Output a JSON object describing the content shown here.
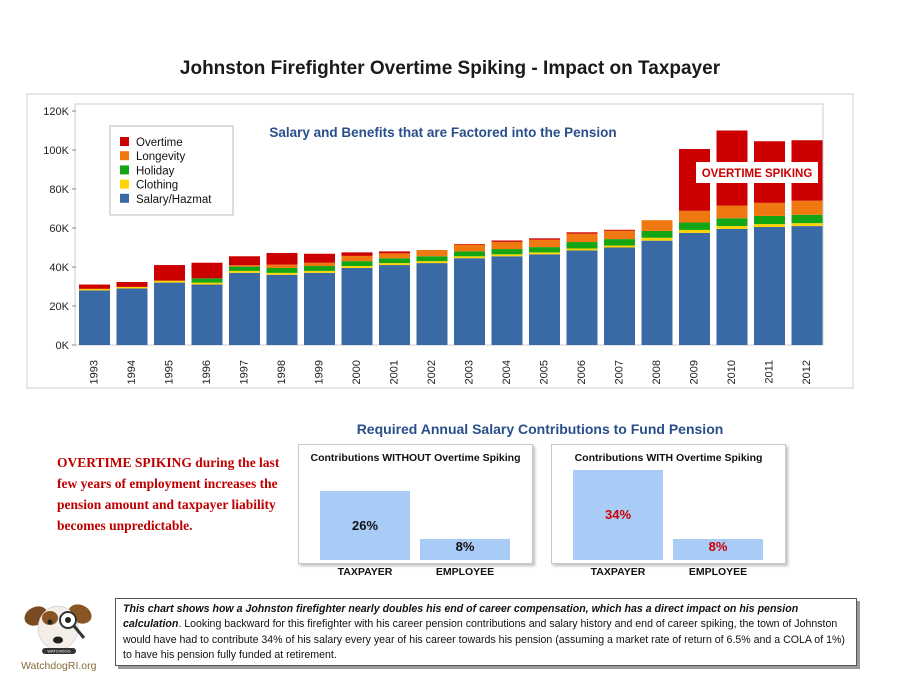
{
  "page_title": "Johnston Firefighter Overtime Spiking - Impact on Taxpayer",
  "chart_data": [
    {
      "type": "bar",
      "stacked": true,
      "title": "Salary and Benefits that are Factored into the Pension",
      "annotation": "OVERTIME SPIKING",
      "categories": [
        "1993",
        "1994",
        "1995",
        "1996",
        "1997",
        "1998",
        "1999",
        "2000",
        "2001",
        "2002",
        "2003",
        "2004",
        "2005",
        "2006",
        "2007",
        "2008",
        "2009",
        "2010",
        "2011",
        "2012"
      ],
      "ylim": [
        0,
        120000
      ],
      "yticks": [
        0,
        20000,
        40000,
        60000,
        80000,
        100000,
        120000
      ],
      "ytick_labels": [
        "0K",
        "20K",
        "40K",
        "60K",
        "80K",
        "100K",
        "120K"
      ],
      "grid": false,
      "legend_position": "top-left",
      "series": [
        {
          "name": "Salary/Hazmat",
          "color": "#3a6aa5",
          "values": [
            28000,
            29000,
            32000,
            31000,
            37000,
            36000,
            37000,
            39500,
            41000,
            42000,
            44500,
            45500,
            46500,
            48500,
            50000,
            53500,
            57500,
            59500,
            60500,
            61000
          ]
        },
        {
          "name": "Clothing",
          "color": "#ffd400",
          "values": [
            800,
            800,
            1000,
            1000,
            1000,
            1000,
            1000,
            1000,
            1000,
            1000,
            1000,
            1000,
            1000,
            1000,
            1000,
            1500,
            1500,
            1500,
            1500,
            1500
          ]
        },
        {
          "name": "Holiday",
          "color": "#13a513",
          "values": [
            0,
            0,
            0,
            2200,
            2200,
            2500,
            2500,
            2500,
            2500,
            2500,
            2500,
            2700,
            2700,
            3300,
            3300,
            3500,
            3800,
            4000,
            4200,
            4300
          ]
        },
        {
          "name": "Longevity",
          "color": "#f07810",
          "values": [
            0,
            0,
            0,
            0,
            700,
            1700,
            1700,
            2700,
            2500,
            3200,
            3500,
            3700,
            3800,
            4300,
            4300,
            5500,
            6000,
            6500,
            6700,
            7200
          ]
        },
        {
          "name": "Overtime",
          "color": "#cc0000",
          "values": [
            2200,
            2500,
            8000,
            8000,
            4600,
            6000,
            4600,
            1800,
            1000,
            0,
            300,
            700,
            700,
            700,
            500,
            0,
            31700,
            38500,
            31600,
            31000
          ]
        }
      ]
    },
    {
      "type": "bar",
      "title": "Contributions WITHOUT Overtime Spiking",
      "categories": [
        "TAXPAYER",
        "EMPLOYEE"
      ],
      "values": [
        26,
        8
      ],
      "value_labels": [
        "26%",
        "8%"
      ],
      "label_color": "#111111"
    },
    {
      "type": "bar",
      "title": "Contributions WITH Overtime Spiking",
      "categories": [
        "TAXPAYER",
        "EMPLOYEE"
      ],
      "values": [
        34,
        8
      ],
      "value_labels": [
        "34%",
        "8%"
      ],
      "label_color": "#cc0000"
    }
  ],
  "section_title": "Required Annual Salary Contributions to Fund Pension",
  "overtime_note": "OVERTIME SPIKING during the last few years of employment increases the pension amount and taxpayer liability becomes unpredictable.",
  "footer": {
    "lead": "This chart shows  how a Johnston firefighter nearly doubles his end of career compensation, which has a direct impact on his pension calculation",
    "body": ".  Looking backward for this firefighter with his career pension contributions and salary history and end of career spiking, the town of Johnston would have had to contribute 34% of his salary every year of his career towards his pension (assuming a market rate of return of 6.5% and a COLA of 1%) to have his pension fully funded at retirement."
  },
  "logo_text": "WatchdogRI.org",
  "logo_badge": "WATCHDOG",
  "colors": {
    "accent_red": "#c00000",
    "subtitle_blue": "#2a4e8a",
    "mini_bar": "#a9ccf7"
  }
}
